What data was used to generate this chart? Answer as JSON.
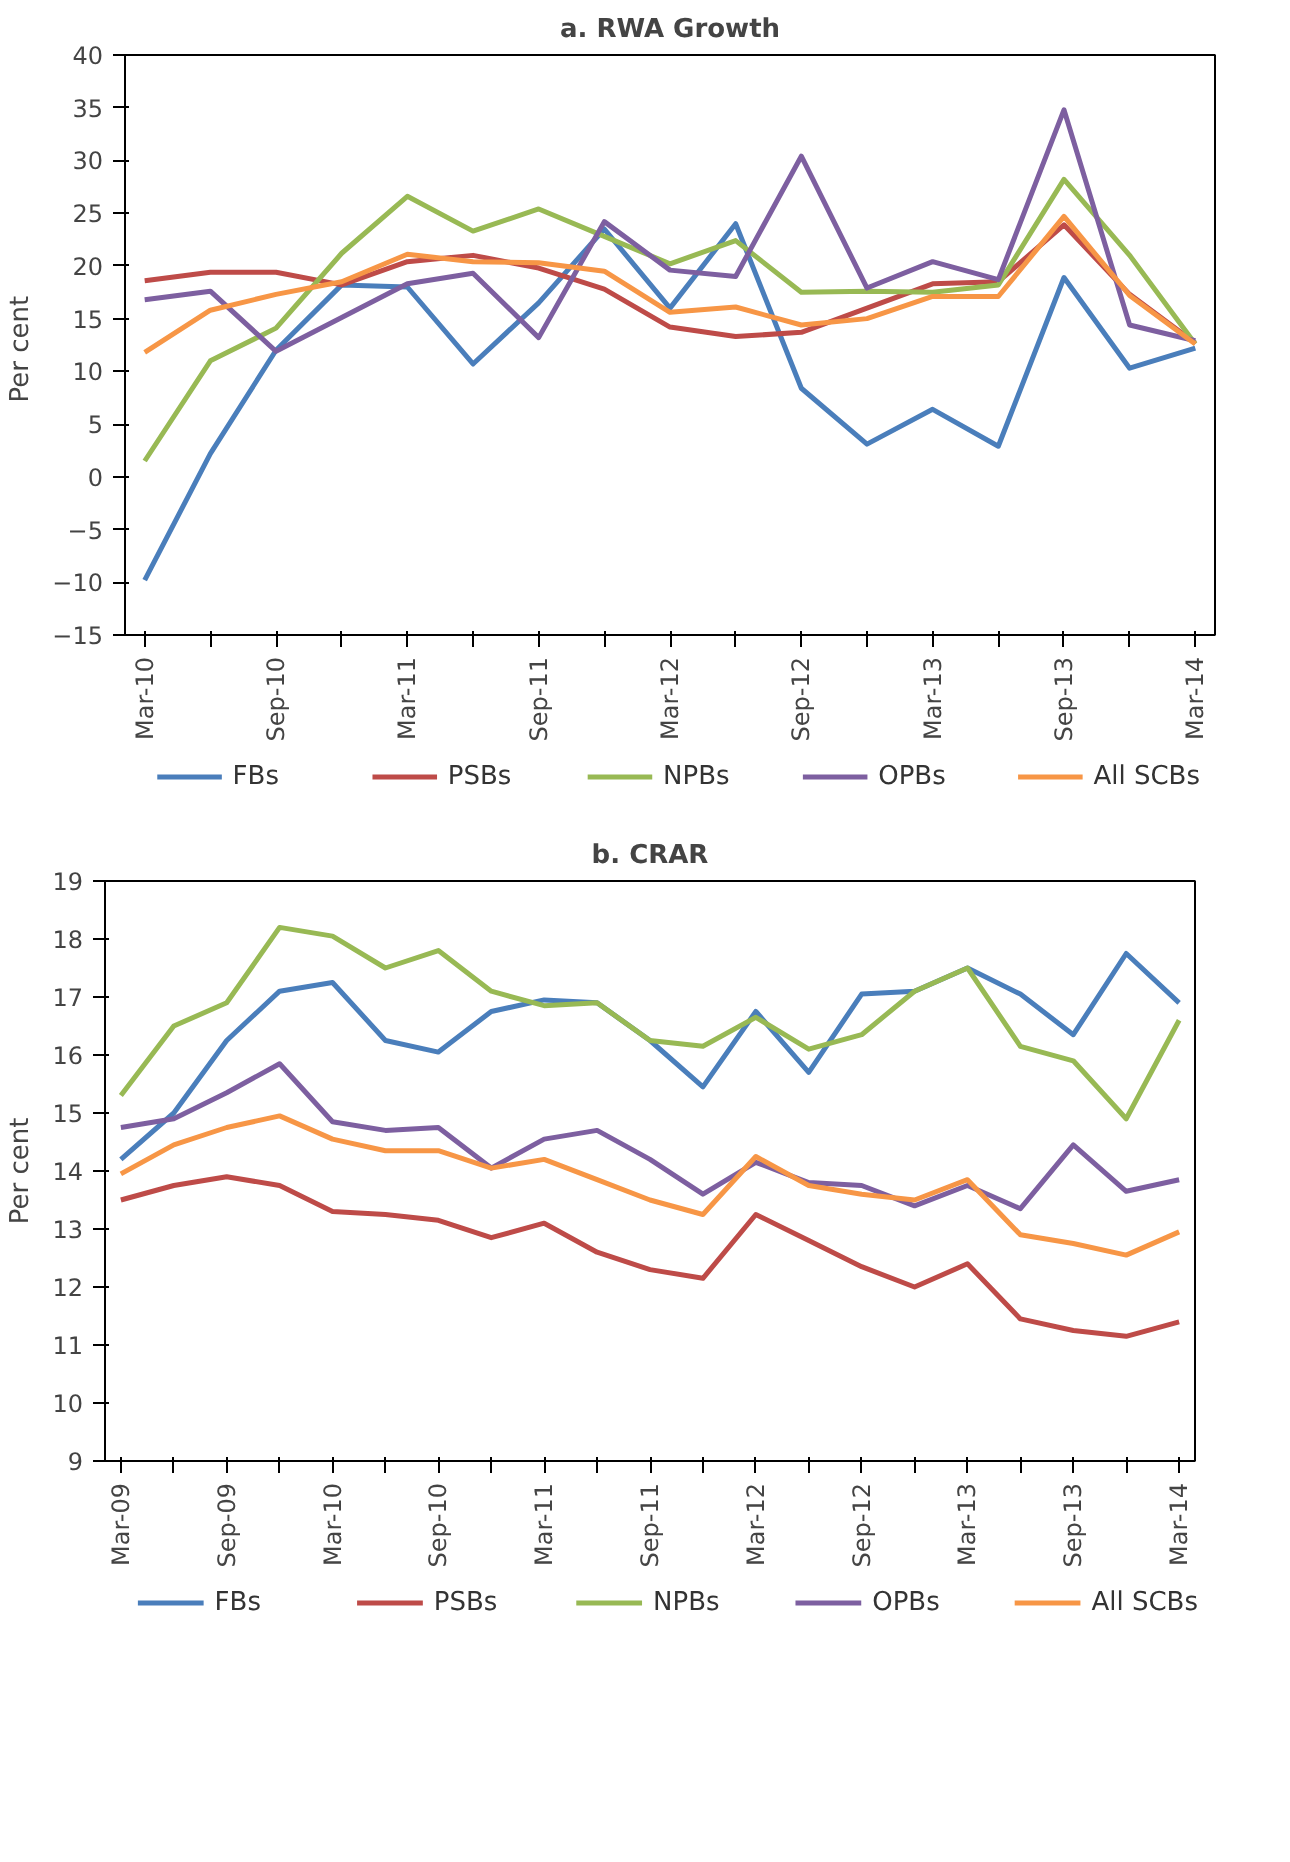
{
  "chart_data": [
    {
      "type": "line",
      "title": "a. RWA Growth",
      "ylabel": "Per  cent",
      "categories": [
        "Mar-10",
        null,
        "Sep-10",
        null,
        "Mar-11",
        null,
        "Sep-11",
        null,
        "Mar-12",
        null,
        "Sep-12",
        null,
        "Mar-13",
        null,
        "Sep-13",
        null,
        "Mar-14"
      ],
      "ylim": [
        -15,
        40
      ],
      "yticks": [
        -15,
        -10,
        -5,
        0,
        5,
        10,
        15,
        20,
        25,
        30,
        35,
        40
      ],
      "grid": false,
      "legend": "bottom",
      "marker": "none",
      "line_style": "solid",
      "series": [
        {
          "name": "FBs",
          "color": "#4a7ebb",
          "values": [
            -9.8,
            2.2,
            12,
            18.2,
            18,
            10.7,
            16.5,
            23.5,
            16,
            24,
            8.4,
            3.1,
            6.4,
            2.9,
            18.9,
            10.3,
            12.2
          ]
        },
        {
          "name": "PSBs",
          "color": "#be4b48",
          "values": [
            18.6,
            19.4,
            19.4,
            18.2,
            20.4,
            21,
            19.8,
            17.8,
            14.2,
            13.3,
            13.7,
            16,
            18.3,
            18.5,
            23.9,
            17.3,
            12.7
          ]
        },
        {
          "name": "NPBs",
          "color": "#98b954",
          "values": [
            1.5,
            11,
            14.1,
            21.2,
            26.6,
            23.3,
            25.4,
            22.8,
            20.2,
            22.4,
            17.5,
            17.6,
            17.5,
            18.2,
            28.2,
            21,
            12.6
          ]
        },
        {
          "name": "OPBs",
          "color": "#7d5fa0",
          "values": [
            16.8,
            17.6,
            11.9,
            15.1,
            18.3,
            19.3,
            13.2,
            24.2,
            19.6,
            19,
            30.4,
            17.9,
            20.4,
            18.7,
            34.8,
            14.4,
            12.9
          ]
        },
        {
          "name": "All SCBs",
          "color": "#f79646",
          "values": [
            11.8,
            15.8,
            17.3,
            18.5,
            21.1,
            20.4,
            20.3,
            19.5,
            15.6,
            16.1,
            14.4,
            15,
            17.1,
            17.1,
            24.7,
            17.2,
            12.6
          ]
        }
      ]
    },
    {
      "type": "line",
      "title": "b. CRAR",
      "ylabel": "Per cent",
      "categories": [
        "Mar-09",
        null,
        "Sep-09",
        null,
        "Mar-10",
        null,
        "Sep-10",
        null,
        "Mar-11",
        null,
        "Sep-11",
        null,
        "Mar-12",
        null,
        "Sep-12",
        null,
        "Mar-13",
        null,
        "Sep-13",
        null,
        "Mar-14"
      ],
      "ylim": [
        9,
        19
      ],
      "yticks": [
        9,
        10,
        11,
        12,
        13,
        14,
        15,
        16,
        17,
        18,
        19
      ],
      "grid": false,
      "legend": "bottom",
      "marker": "none",
      "line_style": "solid",
      "series": [
        {
          "name": "FBs",
          "color": "#4a7ebb",
          "values": [
            14.2,
            15.0,
            16.25,
            17.1,
            17.25,
            16.25,
            16.05,
            16.75,
            16.95,
            16.9,
            16.25,
            15.45,
            16.75,
            15.7,
            17.05,
            17.1,
            17.5,
            17.05,
            16.35,
            17.75,
            16.9
          ]
        },
        {
          "name": "PSBs",
          "color": "#be4b48",
          "values": [
            13.5,
            13.75,
            13.9,
            13.75,
            13.3,
            13.25,
            13.15,
            12.85,
            13.1,
            12.6,
            12.3,
            12.15,
            13.25,
            12.8,
            12.35,
            12.0,
            12.4,
            11.45,
            11.25,
            11.15,
            11.4
          ]
        },
        {
          "name": "NPBs",
          "color": "#98b954",
          "values": [
            15.3,
            16.5,
            16.9,
            18.2,
            18.05,
            17.5,
            17.8,
            17.1,
            16.85,
            16.9,
            16.25,
            16.15,
            16.65,
            16.1,
            16.35,
            17.1,
            17.5,
            16.15,
            15.9,
            14.9,
            16.6
          ]
        },
        {
          "name": "OPBs",
          "color": "#7d5fa0",
          "values": [
            14.75,
            14.9,
            15.35,
            15.85,
            14.85,
            14.7,
            14.75,
            14.05,
            14.55,
            14.7,
            14.2,
            13.6,
            14.15,
            13.8,
            13.75,
            13.4,
            13.75,
            13.35,
            14.45,
            13.65,
            13.85
          ]
        },
        {
          "name": "All SCBs",
          "color": "#f79646",
          "values": [
            13.95,
            14.45,
            14.75,
            14.95,
            14.55,
            14.35,
            14.35,
            14.05,
            14.2,
            13.85,
            13.5,
            13.25,
            14.25,
            13.75,
            13.6,
            13.5,
            13.85,
            12.9,
            12.75,
            12.55,
            12.95
          ]
        }
      ]
    }
  ]
}
